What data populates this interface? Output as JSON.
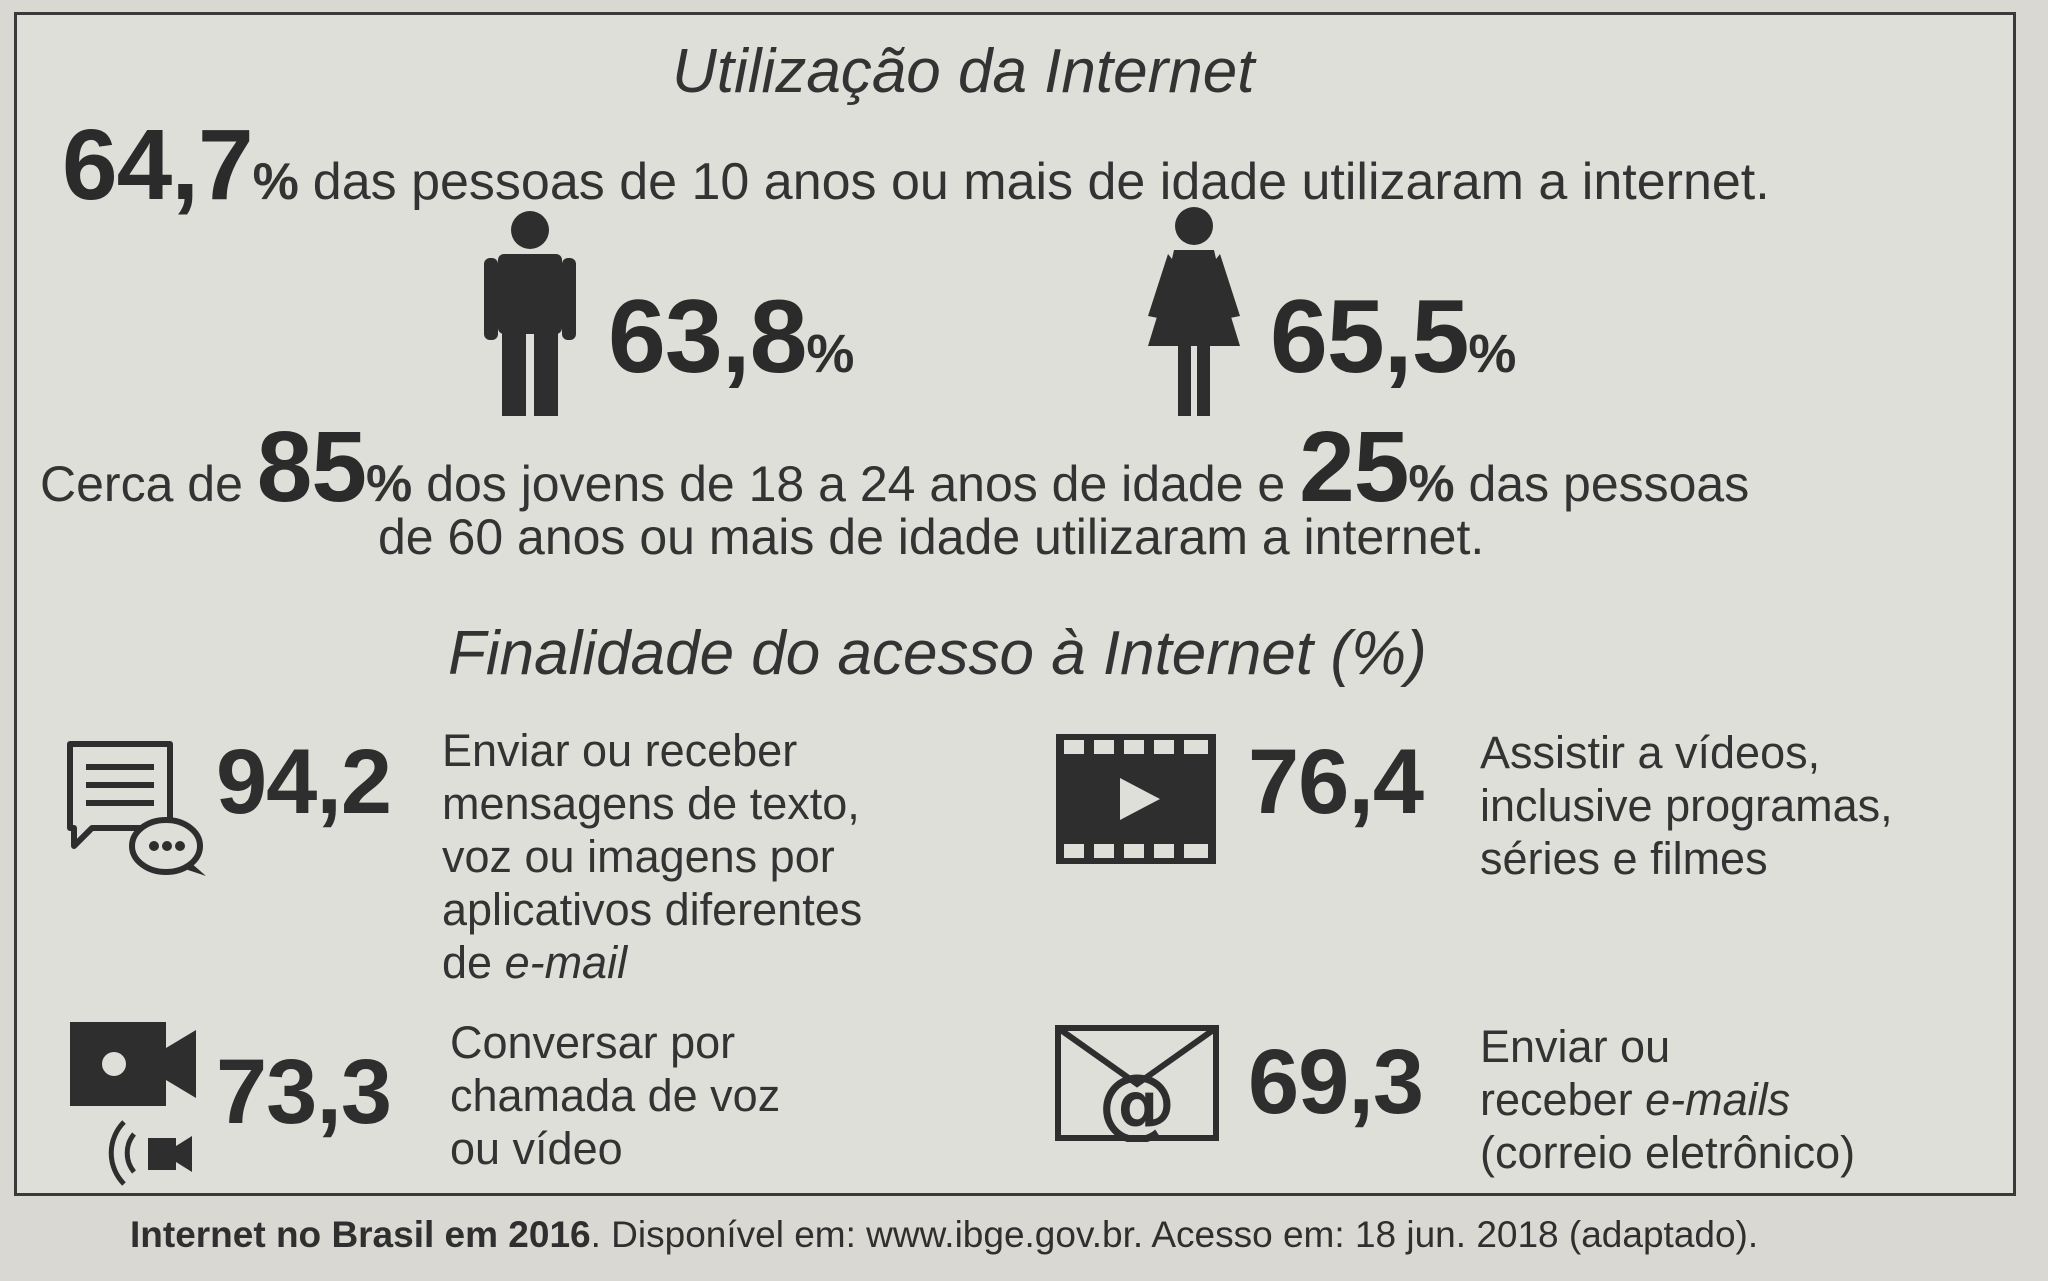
{
  "title": "Utilização da Internet",
  "headline": {
    "value": "64,7",
    "unit": "%",
    "text": "das pessoas de 10 anos ou mais de idade utilizaram a internet."
  },
  "male": {
    "value": "63,8",
    "unit": "%",
    "icon": "man-icon"
  },
  "female": {
    "value": "65,5",
    "unit": "%",
    "icon": "woman-icon"
  },
  "age_stats": {
    "prefix": "Cerca de",
    "young_value": "85",
    "young_unit": "%",
    "young_text": "dos jovens  de 18 a 24 anos de idade e",
    "old_value": "25",
    "old_unit": "%",
    "old_text": "das pessoas",
    "line2": "de 60 anos ou mais de idade utilizaram a internet."
  },
  "purpose_title": "Finalidade do acesso à Internet (%)",
  "purposes": [
    {
      "value": "94,2",
      "icon": "chat-bubbles-icon",
      "lines": [
        "Enviar ou receber",
        "mensagens de texto,",
        "voz ou imagens por",
        "aplicativos diferentes"
      ],
      "last_prefix": "de ",
      "last_italic": "e-mail"
    },
    {
      "value": "76,4",
      "icon": "video-play-icon",
      "lines": [
        "Assistir a vídeos,",
        "inclusive programas,",
        "séries e filmes"
      ]
    },
    {
      "value": "73,3",
      "icon": "video-call-icon",
      "lines": [
        "Conversar por",
        "chamada de voz",
        "ou vídeo"
      ]
    },
    {
      "value": "69,3",
      "icon": "email-icon",
      "line1": "Enviar ou",
      "line2_prefix": "receber ",
      "line2_italic": "e-mails",
      "line3": "(correio eletrônico)"
    }
  ],
  "footer": {
    "bold": "Internet no Brasil em 2016",
    "rest": ". Disponível em: www.ibge.gov.br. Acesso em: 18 jun. 2018 (adaptado)."
  }
}
